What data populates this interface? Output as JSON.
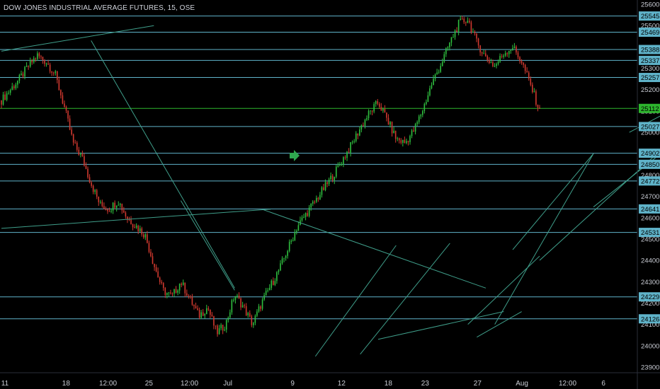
{
  "window": {
    "title": "DOW JONES INDUSTRIAL AVERAGE FUTURES, 15, OSE"
  },
  "colors": {
    "background": "#000000",
    "hline": "#5fb3c9",
    "trend": "#3f9e8a",
    "up": "#2fbf3f",
    "down": "#d0392f",
    "current": "#2db52d",
    "axis_text": "#c9ccd4"
  },
  "chart_data": {
    "type": "candlestick",
    "title": "DOW JONES INDUSTRIAL AVERAGE FUTURES, 15, OSE",
    "ylim": [
      23880,
      25620
    ],
    "yticks": [
      23900,
      24000,
      24100,
      24200,
      24300,
      24400,
      24500,
      24600,
      24700,
      24800,
      24900,
      25000,
      25100,
      25200,
      25300,
      25400,
      25500,
      25600
    ],
    "xtick_labels": [
      "11",
      "18",
      "12:00",
      "25",
      "12:00",
      "Jul",
      "9",
      "12",
      "18",
      "23",
      "27",
      "Aug",
      "12:00",
      "6"
    ],
    "horizontal_levels": [
      25545,
      25469,
      25388,
      25337,
      25257,
      25112,
      25027,
      24902,
      24850,
      24772,
      24641,
      24531,
      24229,
      24126
    ],
    "current_price": 25112,
    "price_path": [
      [
        0,
        25150
      ],
      [
        2,
        25250
      ],
      [
        3,
        25310
      ],
      [
        4,
        25360
      ],
      [
        5,
        25330
      ],
      [
        6,
        25270
      ],
      [
        7,
        25120
      ],
      [
        8,
        24950
      ],
      [
        9,
        24880
      ],
      [
        10,
        24760
      ],
      [
        11,
        24660
      ],
      [
        12,
        24640
      ],
      [
        13,
        24680
      ],
      [
        14,
        24600
      ],
      [
        15,
        24560
      ],
      [
        16,
        24520
      ],
      [
        17,
        24380
      ],
      [
        18,
        24260
      ],
      [
        19,
        24230
      ],
      [
        20,
        24300
      ],
      [
        21,
        24220
      ],
      [
        22,
        24140
      ],
      [
        23,
        24180
      ],
      [
        24,
        24060
      ],
      [
        25,
        24100
      ],
      [
        26,
        24240
      ],
      [
        27,
        24180
      ],
      [
        28,
        24100
      ],
      [
        29,
        24200
      ],
      [
        30,
        24280
      ],
      [
        31,
        24360
      ],
      [
        32,
        24460
      ],
      [
        33,
        24560
      ],
      [
        34,
        24620
      ],
      [
        35,
        24680
      ],
      [
        36,
        24740
      ],
      [
        37,
        24800
      ],
      [
        38,
        24870
      ],
      [
        39,
        24940
      ],
      [
        40,
        25020
      ],
      [
        41,
        25090
      ],
      [
        42,
        25140
      ],
      [
        43,
        25060
      ],
      [
        44,
        24970
      ],
      [
        45,
        24950
      ],
      [
        46,
        25010
      ],
      [
        47,
        25110
      ],
      [
        48,
        25230
      ],
      [
        49,
        25320
      ],
      [
        50,
        25420
      ],
      [
        51,
        25510
      ],
      [
        52,
        25530
      ],
      [
        53,
        25420
      ],
      [
        54,
        25350
      ],
      [
        55,
        25310
      ],
      [
        56,
        25370
      ],
      [
        57,
        25400
      ],
      [
        58,
        25330
      ],
      [
        59,
        25220
      ],
      [
        60,
        25100
      ]
    ],
    "trendlines": [
      {
        "from": [
          0,
          25380
        ],
        "to": [
          17,
          25500
        ]
      },
      {
        "from": [
          10,
          25430
        ],
        "to": [
          26,
          24270
        ]
      },
      {
        "from": [
          0,
          24550
        ],
        "to": [
          30,
          24640
        ]
      },
      {
        "from": [
          20,
          24680
        ],
        "to": [
          26,
          24260
        ]
      },
      {
        "from": [
          29,
          24640
        ],
        "to": [
          54,
          24270
        ]
      },
      {
        "from": [
          40,
          23960
        ],
        "to": [
          50,
          24480
        ]
      },
      {
        "from": [
          42,
          24030
        ],
        "to": [
          56,
          24160
        ]
      },
      {
        "from": [
          35,
          23950
        ],
        "to": [
          44,
          24470
        ]
      },
      {
        "from": [
          53,
          24040
        ],
        "to": [
          58,
          24160
        ]
      },
      {
        "from": [
          55,
          24100
        ],
        "to": [
          66,
          24900
        ]
      },
      {
        "from": [
          57,
          24450
        ],
        "to": [
          66,
          24900
        ]
      },
      {
        "from": [
          52,
          24100
        ],
        "to": [
          60,
          24420
        ]
      },
      {
        "from": [
          60,
          24400
        ],
        "to": [
          77,
          25050
        ]
      },
      {
        "from": [
          66,
          24650
        ],
        "to": [
          75,
          24950
        ]
      },
      {
        "from": [
          70,
          25000
        ],
        "to": [
          79,
          25200
        ]
      },
      {
        "from": [
          80,
          25100
        ],
        "to": [
          84,
          24900
        ]
      },
      {
        "from": [
          89,
          25560
        ],
        "to": [
          104,
          25080
        ]
      }
    ]
  }
}
